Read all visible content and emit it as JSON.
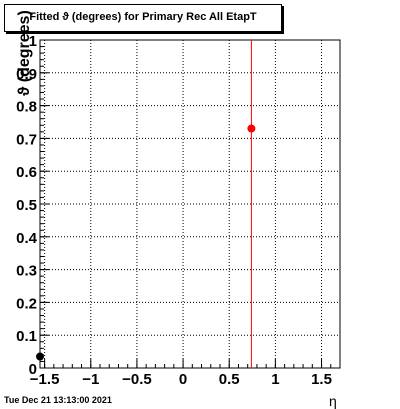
{
  "title": "Fitted ϑ (degrees) for Primary Rec All EtapT",
  "timestamp": "Tue Dec 21 13:13:00 2021",
  "chart_data": {
    "type": "scatter",
    "title": "Fitted ϑ (degrees) for Primary Rec All EtapT",
    "xlabel": "η",
    "ylabel": "ϑ (degrees)",
    "xlim": [
      -1.55,
      1.7
    ],
    "ylim": [
      0,
      1
    ],
    "grid": true,
    "x_ticks": [
      -1.5,
      -1,
      -0.5,
      0,
      0.5,
      1,
      1.5
    ],
    "x_tick_labels": [
      "−1.5",
      "−1",
      "−0.5",
      "0",
      "0.5",
      "1",
      "1.5"
    ],
    "y_ticks": [
      0,
      0.1,
      0.2,
      0.3,
      0.4,
      0.5,
      0.6,
      0.7,
      0.8,
      0.9,
      1
    ],
    "y_tick_labels": [
      "0",
      "0.1",
      "0.2",
      "0.3",
      "0.4",
      "0.5",
      "0.6",
      "0.7",
      "0.8",
      "0.9",
      "1"
    ],
    "series": [
      {
        "color": "#000000",
        "points": [
          {
            "x": -1.55,
            "y": 0.035
          }
        ]
      },
      {
        "color": "#ff0000",
        "points": [
          {
            "x": 0.74,
            "y": 0.73
          }
        ]
      }
    ],
    "markers": [
      {
        "type": "vertical-line",
        "x": 0.74,
        "color": "#ff0000"
      }
    ]
  }
}
